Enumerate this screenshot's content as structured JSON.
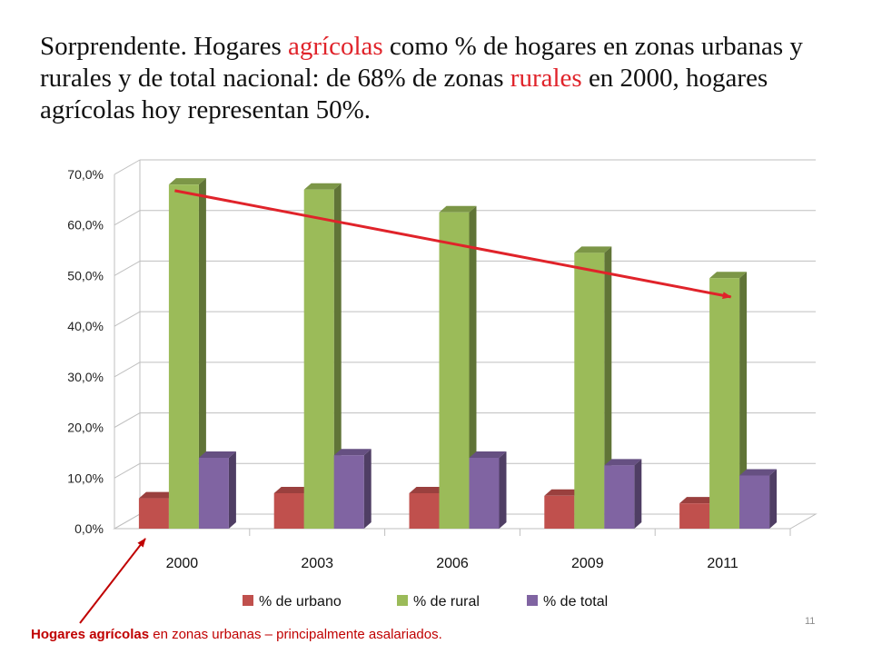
{
  "title": {
    "parts": [
      {
        "text": "Sorprendente. Hogares ",
        "highlight": false
      },
      {
        "text": "agrícolas",
        "highlight": true
      },
      {
        "text": " como % de hogares en zonas urbanas y rurales y de total nacional: de 68% de zonas ",
        "highlight": false
      },
      {
        "text": "rurales",
        "highlight": true
      },
      {
        "text": " en 2000, hogares agrícolas hoy representan 50%.",
        "highlight": false
      }
    ]
  },
  "colors": {
    "highlight": "#e0232a",
    "arrow": "#e0232a",
    "footnote_arrow": "#c00000",
    "text": "#111111"
  },
  "chart_data": {
    "type": "bar",
    "categories": [
      "2000",
      "2003",
      "2006",
      "2009",
      "2011"
    ],
    "series": [
      {
        "name": "% de urbano",
        "color": "#c0504d",
        "values": [
          6.0,
          7.0,
          7.0,
          6.5,
          5.0
        ]
      },
      {
        "name": "% de rural",
        "color": "#9bbb59",
        "values": [
          68.0,
          67.0,
          62.5,
          54.5,
          49.5
        ]
      },
      {
        "name": "% de total",
        "color": "#8064a2",
        "values": [
          14.0,
          14.5,
          14.0,
          12.5,
          10.5
        ]
      }
    ],
    "yticks": [
      "0,0%",
      "10,0%",
      "20,0%",
      "30,0%",
      "40,0%",
      "50,0%",
      "60,0%",
      "70,0%"
    ],
    "ylim": [
      0,
      70
    ],
    "grid": true,
    "legend_position": "bottom",
    "trend_arrow": {
      "from": {
        "category": "2000",
        "value": 65.0
      },
      "to": {
        "category": "2011",
        "value": 44.0
      }
    }
  },
  "footnote": {
    "bold": "Hogares agrícolas",
    "rest": " en zonas urbanas – principalmente asalariados."
  },
  "page_number": "11"
}
